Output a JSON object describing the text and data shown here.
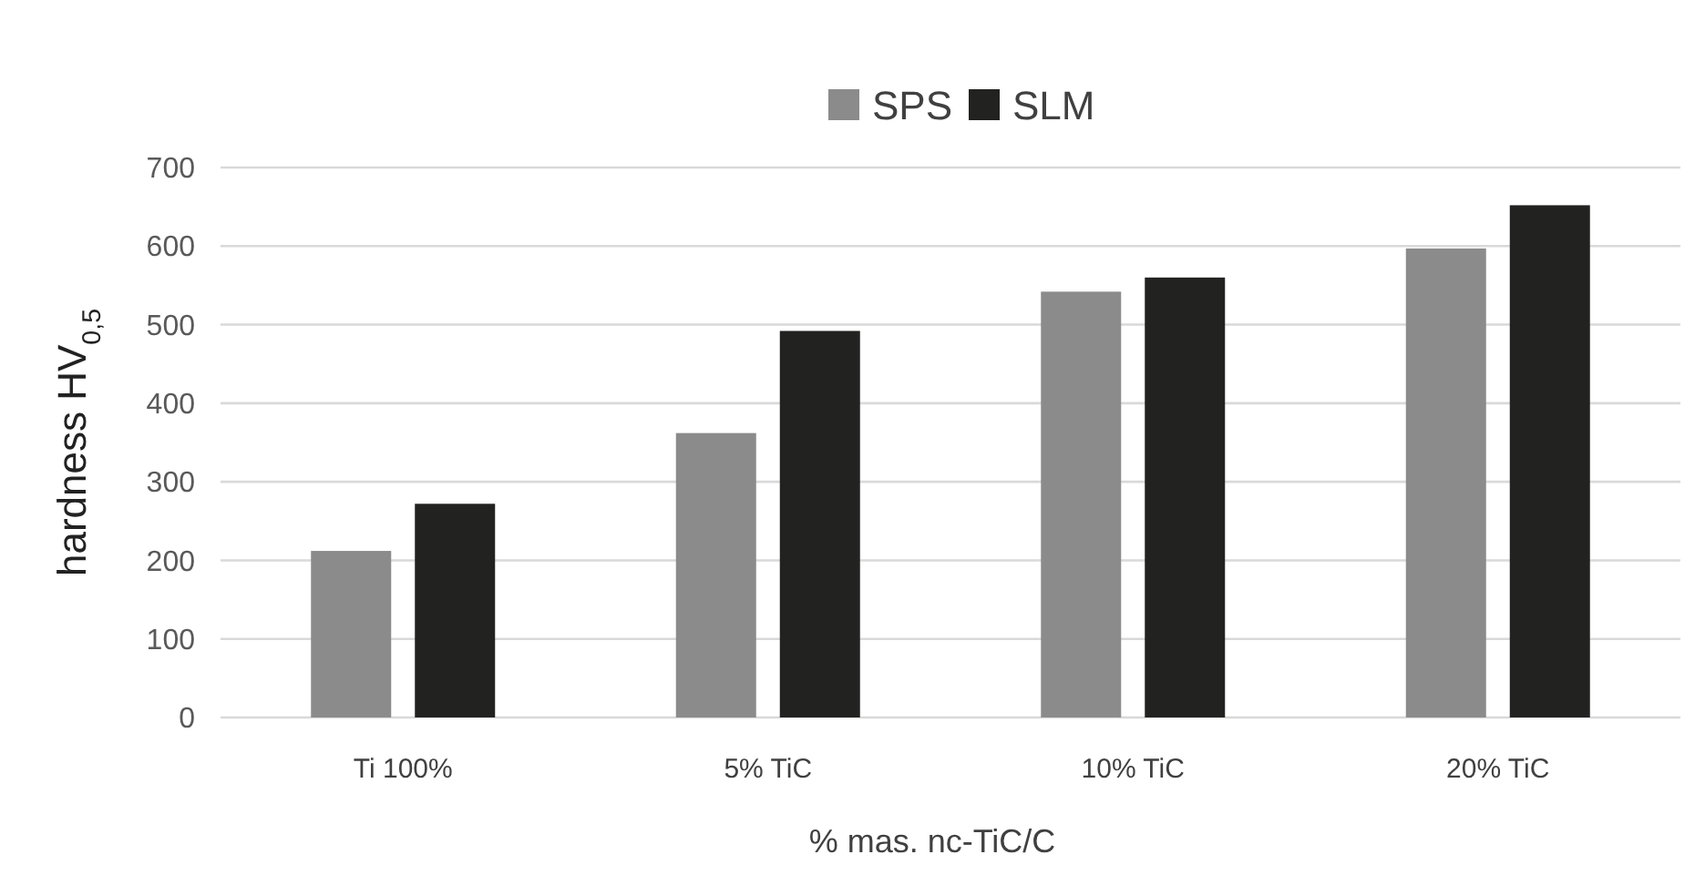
{
  "chart_data": {
    "type": "bar",
    "xlabel": "% mas. nc-TiC/C",
    "ylabel": "hardness HV$_{0,5}$",
    "categories": [
      "Ti 100%",
      "5% TiC",
      "10% TiC",
      "20% TiC"
    ],
    "series": [
      {
        "name": "SPS",
        "color": "#8a8b8a",
        "values": [
          212,
          362,
          542,
          597
        ]
      },
      {
        "name": "SLM",
        "color": "#222220",
        "values": [
          272,
          492,
          560,
          652
        ]
      }
    ],
    "ylim": [
      0,
      700
    ],
    "yticks": [
      0,
      100,
      200,
      300,
      400,
      500,
      600,
      700
    ],
    "grid": "y",
    "legend": "top"
  }
}
